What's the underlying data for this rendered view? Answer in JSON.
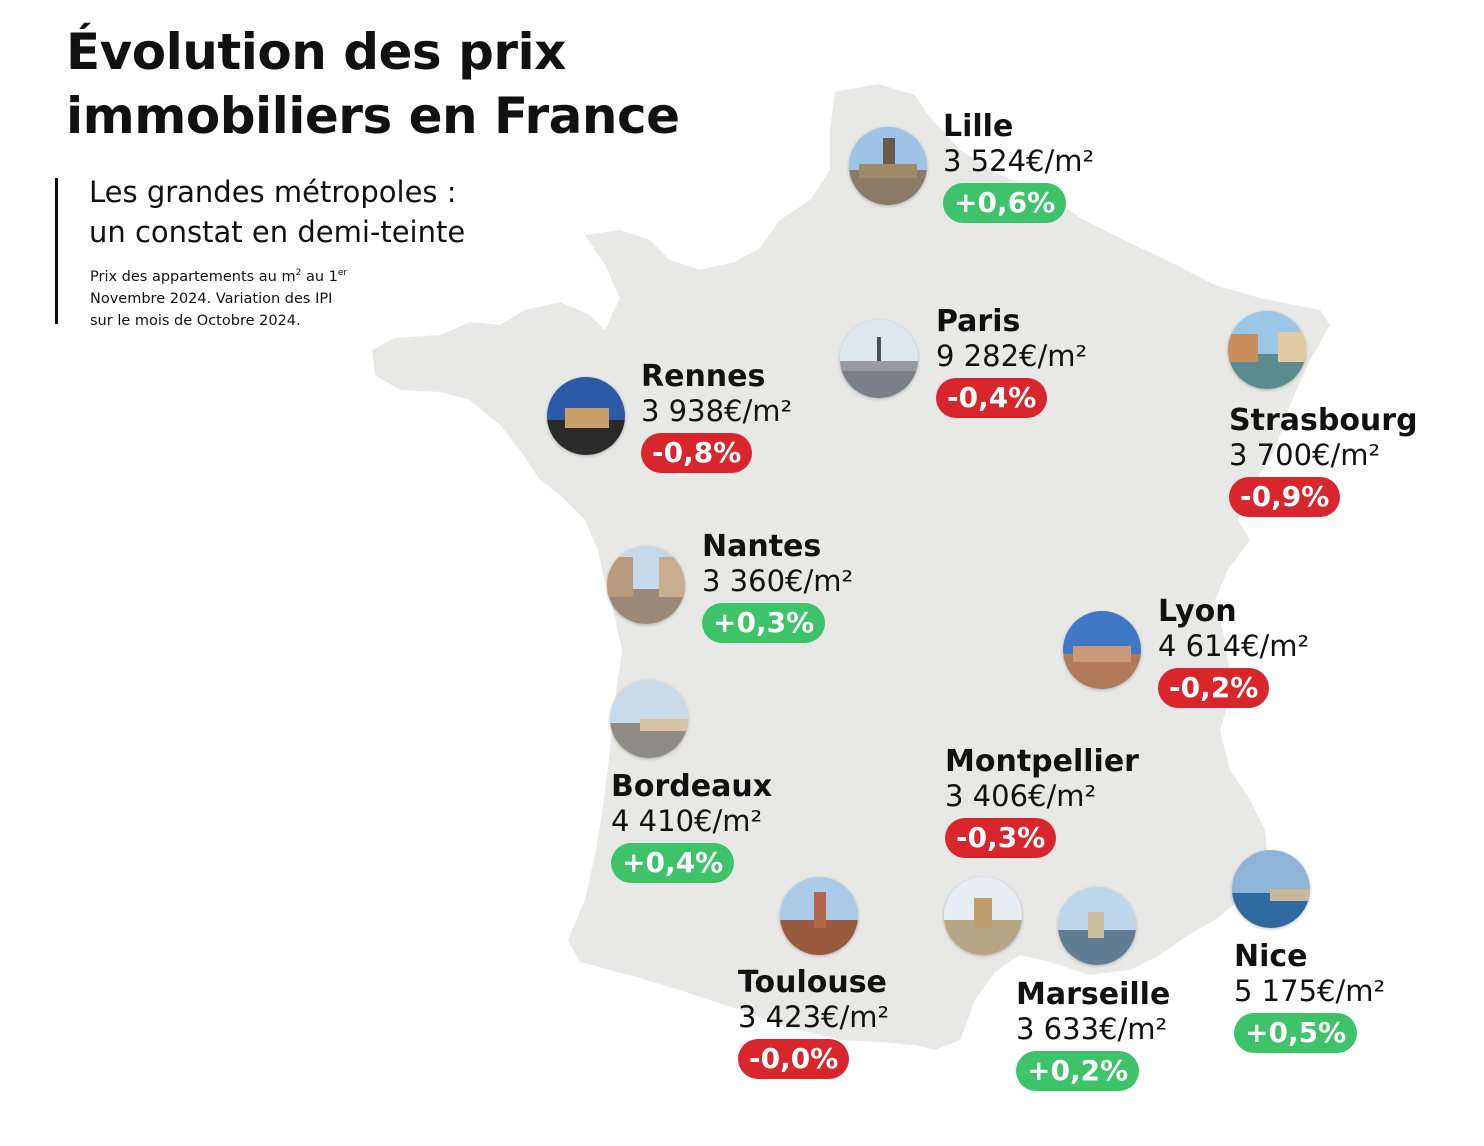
{
  "title": {
    "line1": "Évolution des prix",
    "line2": "immobiliers en France"
  },
  "subtitle": {
    "line1": "Les grandes métropoles :",
    "line2": "un constat en demi-teinte"
  },
  "note": {
    "line1_text": "Prix des appartements au m",
    "line1_sup1": "2",
    "line1_mid": " au 1",
    "line1_sup2": "er",
    "line2": "Novembre 2024. Variation des IPI",
    "line3": "sur le mois de Octobre 2024."
  },
  "colors": {
    "map": "#e8e8e7",
    "positive": "#3ec26a",
    "negative": "#d8262c",
    "text": "#111111"
  },
  "cities": {
    "lille": {
      "name": "Lille",
      "price": "3 524€/m²",
      "change": "+0,6%",
      "trend": "up"
    },
    "paris": {
      "name": "Paris",
      "price": "9 282€/m²",
      "change": "-0,4%",
      "trend": "down"
    },
    "rennes": {
      "name": "Rennes",
      "price": "3 938€/m²",
      "change": "-0,8%",
      "trend": "down"
    },
    "strasbourg": {
      "name": "Strasbourg",
      "price": "3 700€/m²",
      "change": "-0,9%",
      "trend": "down"
    },
    "nantes": {
      "name": "Nantes",
      "price": "3 360€/m²",
      "change": "+0,3%",
      "trend": "up"
    },
    "lyon": {
      "name": "Lyon",
      "price": "4 614€/m²",
      "change": "-0,2%",
      "trend": "down"
    },
    "bordeaux": {
      "name": "Bordeaux",
      "price": "4 410€/m²",
      "change": "+0,4%",
      "trend": "up"
    },
    "montpellier": {
      "name": "Montpellier",
      "price": "3 406€/m²",
      "change": "-0,3%",
      "trend": "down"
    },
    "toulouse": {
      "name": "Toulouse",
      "price": "3 423€/m²",
      "change": "-0,0%",
      "trend": "down"
    },
    "marseille": {
      "name": "Marseille",
      "price": "3 633€/m²",
      "change": "+0,2%",
      "trend": "up"
    },
    "nice": {
      "name": "Nice",
      "price": "5 175€/m²",
      "change": "+0,5%",
      "trend": "up"
    }
  }
}
